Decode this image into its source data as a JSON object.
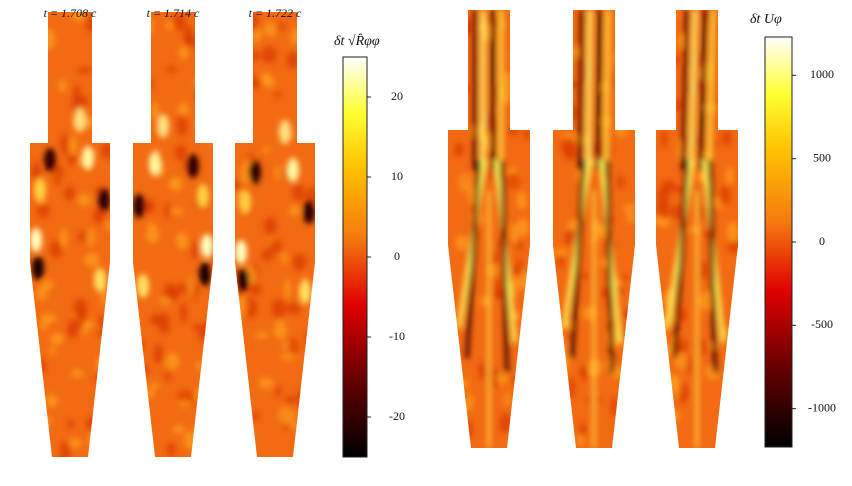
{
  "panels": [
    {
      "times": [
        "t = 1.708 c",
        "t = 1.714 c",
        "t = 1.722 c"
      ],
      "colorbar": {
        "label": "δt √R̂φφ",
        "ylim": [
          -25,
          25
        ],
        "yticks": [
          20,
          10,
          0,
          -10,
          -20
        ]
      }
    },
    {
      "colorbar": {
        "label": "δt Uφ",
        "ylim": [
          -1230,
          1230
        ],
        "yticks": [
          1000,
          500,
          0,
          -500,
          -1000
        ]
      }
    }
  ]
}
